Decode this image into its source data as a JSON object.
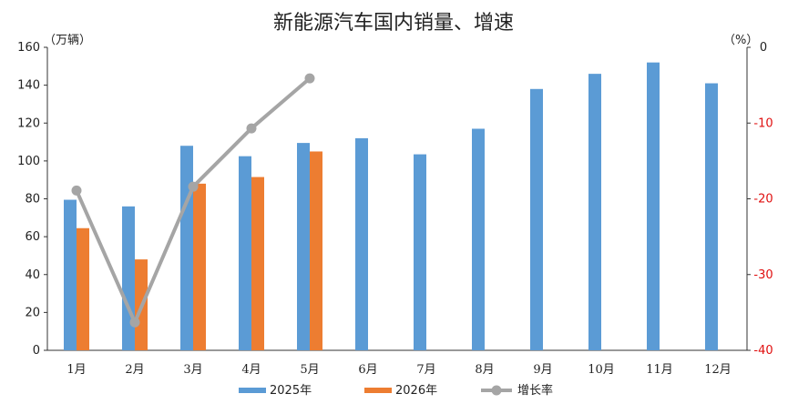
{
  "chart_data": {
    "type": "bar",
    "title": "新能源汽车国内销量、增速",
    "left_unit": "（万辆）",
    "right_unit": "（%）",
    "categories": [
      "1月",
      "2月",
      "3月",
      "4月",
      "5月",
      "6月",
      "7月",
      "8月",
      "9月",
      "10月",
      "11月",
      "12月"
    ],
    "series": [
      {
        "name": "2025年",
        "type": "bar",
        "axis": "left",
        "color": "#5b9bd5",
        "values": [
          79.5,
          76,
          108,
          102.5,
          109.5,
          112,
          103.5,
          117,
          138,
          146,
          152,
          141
        ]
      },
      {
        "name": "2026年",
        "type": "bar",
        "axis": "left",
        "color": "#ed7d31",
        "values": [
          64.5,
          48,
          88,
          91.5,
          105,
          null,
          null,
          null,
          null,
          null,
          null,
          null
        ]
      },
      {
        "name": "增长率",
        "type": "line",
        "axis": "right",
        "color": "#a5a5a5",
        "values": [
          -18.9,
          -36.3,
          -18.4,
          -10.7,
          -4.1,
          null,
          null,
          null,
          null,
          null,
          null,
          null
        ]
      }
    ],
    "ylim_left": [
      0,
      160
    ],
    "yticks_left": [
      "0",
      "20",
      "40",
      "60",
      "80",
      "100",
      "120",
      "140",
      "160"
    ],
    "ylim_right": [
      -40,
      0
    ],
    "yticks_right": [
      "0",
      "-10",
      "-20",
      "-30",
      "-40"
    ],
    "right_axis_color": "#e01010",
    "grid": false,
    "legend_position": "bottom"
  }
}
